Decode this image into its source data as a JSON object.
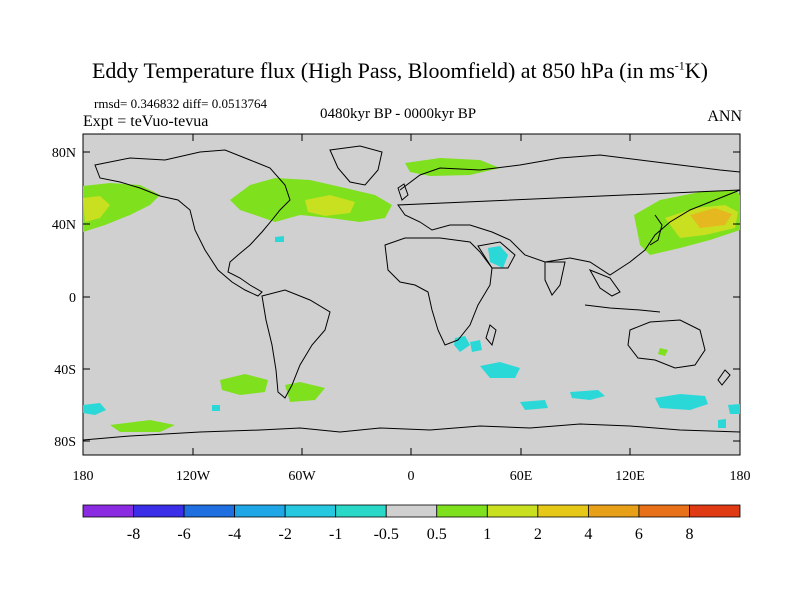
{
  "title": {
    "main": "Eddy Temperature flux (High Pass, Bloomfield) at 850 hPa (in ms",
    "sup": "-1",
    "tail": "K)"
  },
  "stats": {
    "rmsd_line": "rmsd= 0.346832 diff= 0.0513764",
    "expt_line": "Expt = teVuo-tevua"
  },
  "period": "0480kyr BP - 0000kyr BP",
  "season": "ANN",
  "axes": {
    "y_ticks": [
      "80N",
      "40N",
      "0",
      "40S",
      "80S"
    ],
    "x_ticks": [
      "180",
      "120W",
      "60W",
      "0",
      "60E",
      "120E",
      "180"
    ]
  },
  "colorbar": {
    "labels": [
      "-8",
      "-6",
      "-4",
      "-2",
      "-1",
      "-0.5",
      "0.5",
      "1",
      "2",
      "4",
      "6",
      "8"
    ],
    "colors": [
      "#8a2be2",
      "#3a2ee8",
      "#1f6fe0",
      "#1fa6e6",
      "#26c8e0",
      "#2ad8c8",
      "#d0d0d0",
      "#7fe01e",
      "#c8e020",
      "#e6c818",
      "#e8a018",
      "#e87018",
      "#e03a14"
    ]
  },
  "colors": {
    "land_ocean": "#d0d0d0",
    "positive_green": "#7fe01e",
    "positive_yellow": "#c8e020",
    "positive_orange": "#e6b820",
    "negative_cyan": "#2ad8d8"
  }
}
